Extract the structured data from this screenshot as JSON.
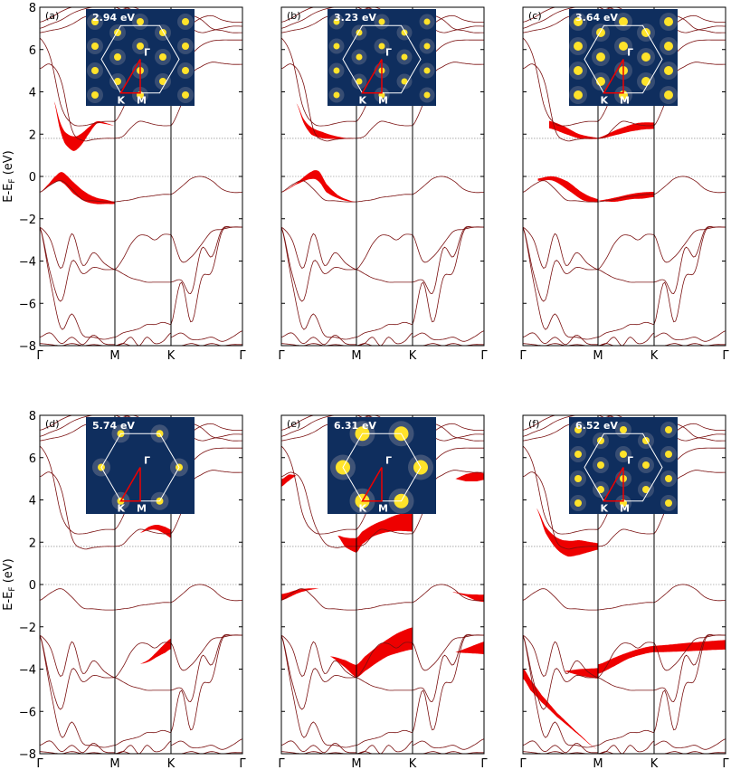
{
  "figure": {
    "ylabel_main": "E-E",
    "ylabel_sub": "F",
    "ylabel_unit": " (eV)",
    "ylim": [
      -8,
      8
    ],
    "yticks": [
      "8",
      "6",
      "4",
      "2",
      "0",
      "−2",
      "−4",
      "−6",
      "−8"
    ],
    "xticks": [
      "Γ",
      "M",
      "K",
      "Γ"
    ],
    "ref_lines": [
      0.0,
      1.8
    ],
    "inset_labels": {
      "gamma": "Γ",
      "k": "K",
      "m": "M"
    },
    "colors": {
      "band": "#7a1010",
      "weight": "#ee0000",
      "inset_bg": "#0f2e5e",
      "hex": "#ffffff",
      "spot": "#ffe32a",
      "path": "#ee0000"
    }
  },
  "chart_data": [
    {
      "panel": "(a)",
      "energy": "2.94 eV",
      "type": "line",
      "xlabel": "",
      "ylabel": "E-EF (eV)",
      "ylim": [
        -8,
        8
      ],
      "grid": false,
      "fatbands": [
        {
          "x": [
            0.19,
            0.26,
            0.33,
            0.45,
            0.55,
            0.66,
            0.76,
            0.88,
            1.0
          ],
          "y": [
            3.55,
            2.5,
            1.85,
            1.55,
            1.75,
            2.2,
            2.55,
            2.5,
            2.4
          ],
          "w": [
            0.0,
            0.35,
            0.55,
            0.7,
            0.55,
            0.3,
            0.1,
            0.05,
            0.0
          ]
        },
        {
          "x": [
            0.0,
            0.12,
            0.22,
            0.3,
            0.45,
            0.6,
            0.75,
            0.88,
            1.0
          ],
          "y": [
            -0.75,
            -0.4,
            -0.1,
            -0.05,
            -0.55,
            -0.95,
            -1.15,
            -1.2,
            -1.25
          ],
          "w": [
            0.0,
            0.1,
            0.3,
            0.5,
            0.55,
            0.45,
            0.3,
            0.2,
            0.1
          ]
        }
      ]
    },
    {
      "panel": "(b)",
      "energy": "3.23 eV",
      "type": "line",
      "xlabel": "",
      "ylabel": "",
      "ylim": [
        -8,
        8
      ],
      "grid": false,
      "fatbands": [
        {
          "x": [
            0.2,
            0.3,
            0.4,
            0.55,
            0.7,
            0.85,
            1.0
          ],
          "y": [
            3.45,
            2.6,
            2.15,
            1.95,
            1.85,
            1.8,
            1.8
          ],
          "w": [
            0.0,
            0.2,
            0.35,
            0.3,
            0.15,
            0.05,
            0.0
          ]
        },
        {
          "x": [
            0.0,
            0.2,
            0.4,
            0.5,
            0.6,
            0.75,
            0.9,
            1.0
          ],
          "y": [
            -0.75,
            -0.35,
            0.05,
            0.0,
            -0.55,
            -0.95,
            -1.15,
            -1.2
          ],
          "w": [
            0.0,
            0.05,
            0.35,
            0.5,
            0.4,
            0.15,
            0.05,
            0.0
          ]
        }
      ]
    },
    {
      "panel": "(c)",
      "energy": "3.64 eV",
      "type": "line",
      "xlabel": "",
      "ylabel": "",
      "ylim": [
        -8,
        8
      ],
      "grid": false,
      "fatbands": [
        {
          "x": [
            0.35,
            0.55,
            0.75,
            1.0
          ],
          "y": [
            2.45,
            2.2,
            1.9,
            1.8
          ],
          "w": [
            0.35,
            0.35,
            0.2,
            0.05
          ]
        },
        {
          "x": [
            0.0,
            0.35,
            0.7,
            1.0
          ],
          "y": [
            1.8,
            2.1,
            2.35,
            2.4
          ],
          "w": [
            0.05,
            0.25,
            0.35,
            0.3
          ]
        },
        {
          "x": [
            0.2,
            0.4,
            0.6,
            0.8,
            1.0
          ],
          "y": [
            -0.15,
            -0.1,
            -0.45,
            -0.95,
            -1.15
          ],
          "w": [
            0.1,
            0.2,
            0.4,
            0.35,
            0.15
          ]
        },
        {
          "x": [
            0.0,
            0.3,
            0.6,
            0.8,
            1.0
          ],
          "y": [
            -1.15,
            -1.1,
            -0.95,
            -0.9,
            -0.85
          ],
          "w": [
            0.0,
            0.2,
            0.25,
            0.3,
            0.25
          ]
        }
      ]
    },
    {
      "panel": "(d)",
      "energy": "5.74 eV",
      "type": "line",
      "xlabel": "",
      "ylabel": "E-EF (eV)",
      "ylim": [
        -8,
        8
      ],
      "grid": false,
      "fatbands": [
        {
          "x": [
            0.45,
            0.6,
            0.75,
            0.9,
            1.0
          ],
          "y": [
            2.45,
            2.65,
            2.7,
            2.55,
            2.4
          ],
          "w": [
            0.0,
            0.15,
            0.25,
            0.35,
            0.4
          ]
        },
        {
          "x": [
            0.45,
            0.6,
            0.75,
            0.9,
            1.0
          ],
          "y": [
            -3.75,
            -3.6,
            -3.3,
            -3.0,
            -2.8
          ],
          "w": [
            0.0,
            0.1,
            0.25,
            0.45,
            0.5
          ]
        }
      ]
    },
    {
      "panel": "(e)",
      "energy": "6.31 eV",
      "type": "line",
      "xlabel": "",
      "ylabel": "",
      "ylim": [
        -8,
        8
      ],
      "grid": false,
      "fatbands": [
        {
          "x": [
            0.0,
            0.1,
            0.2
          ],
          "y": [
            4.8,
            5.05,
            5.15
          ],
          "w": [
            0.35,
            0.3,
            0.0
          ]
        },
        {
          "x": [
            0.75,
            0.85,
            1.0
          ],
          "y": [
            2.3,
            2.0,
            1.85
          ],
          "w": [
            0.0,
            0.45,
            0.7
          ]
        },
        {
          "x": [
            0.0,
            0.1,
            0.3,
            0.5,
            0.7,
            0.85,
            1.0
          ],
          "y": [
            1.85,
            2.2,
            2.55,
            2.75,
            2.9,
            2.95,
            2.95
          ],
          "w": [
            0.7,
            0.6,
            0.55,
            0.6,
            0.75,
            0.85,
            0.9
          ]
        },
        {
          "x": [
            0.6,
            0.75,
            0.9,
            1.0
          ],
          "y": [
            5.0,
            5.05,
            5.1,
            5.1
          ],
          "w": [
            0.0,
            0.35,
            0.45,
            0.3
          ]
        },
        {
          "x": [
            0.0,
            0.25,
            0.5,
            0.75,
            1.0
          ],
          "y": [
            -0.6,
            -0.3,
            -0.2,
            -0.35,
            -0.6
          ],
          "w": [
            0.3,
            0.15,
            0.0,
            0.0,
            0.0
          ]
        },
        {
          "x": [
            0.55,
            0.75,
            0.9,
            1.0
          ],
          "y": [
            -0.35,
            -0.5,
            -0.62,
            -0.65
          ],
          "w": [
            0.0,
            0.1,
            0.3,
            0.35
          ]
        },
        {
          "x": [
            0.65,
            0.85,
            1.0
          ],
          "y": [
            -3.4,
            -3.75,
            -4.1
          ],
          "w": [
            0.0,
            0.35,
            0.6
          ]
        },
        {
          "x": [
            0.0,
            0.15,
            0.35,
            0.55,
            0.75,
            1.0
          ],
          "y": [
            -4.1,
            -3.75,
            -3.35,
            -3.0,
            -2.75,
            -2.55
          ],
          "w": [
            0.6,
            0.7,
            0.75,
            0.8,
            0.95,
            1.05
          ]
        },
        {
          "x": [
            0.6,
            0.8,
            1.0
          ],
          "y": [
            -3.2,
            -3.1,
            -3.0
          ],
          "w": [
            0.0,
            0.3,
            0.6
          ]
        }
      ]
    },
    {
      "panel": "(f)",
      "energy": "6.52 eV",
      "type": "line",
      "xlabel": "",
      "ylabel": "",
      "ylim": [
        -8,
        8
      ],
      "grid": false,
      "fatbands": [
        {
          "x": [
            0.18,
            0.3,
            0.45,
            0.6,
            0.75,
            0.9,
            1.0
          ],
          "y": [
            3.6,
            2.6,
            1.95,
            1.7,
            1.75,
            1.78,
            1.8
          ],
          "w": [
            0.0,
            0.3,
            0.55,
            0.75,
            0.7,
            0.45,
            0.3
          ]
        },
        {
          "x": [
            0.55,
            0.75,
            1.0
          ],
          "y": [
            -4.1,
            -4.15,
            -4.2
          ],
          "w": [
            0.0,
            0.3,
            0.5
          ]
        },
        {
          "x": [
            0.0,
            0.1,
            0.25,
            0.45,
            0.7,
            1.0
          ],
          "y": [
            -4.2,
            -4.75,
            -5.4,
            -6.15,
            -6.95,
            -7.8
          ],
          "w": [
            0.5,
            0.5,
            0.35,
            0.2,
            0.08,
            0.0
          ]
        },
        {
          "x": [
            0.0,
            0.3,
            0.55,
            0.8,
            1.0
          ],
          "y": [
            -4.0,
            -3.65,
            -3.35,
            -3.15,
            -3.05
          ],
          "w": [
            0.45,
            0.4,
            0.3,
            0.3,
            0.3
          ]
        },
        {
          "x": [
            0.0,
            0.5,
            1.0
          ],
          "y": [
            -3.05,
            -2.95,
            -2.85
          ],
          "w": [
            0.3,
            0.4,
            0.45
          ]
        }
      ]
    }
  ]
}
